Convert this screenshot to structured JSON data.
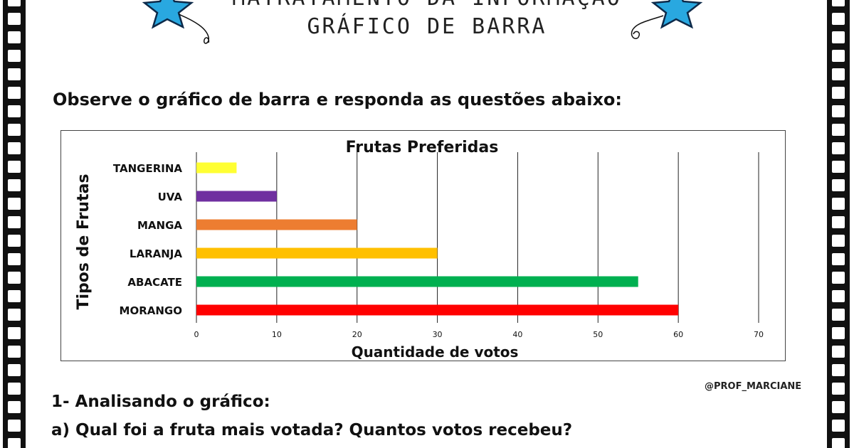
{
  "header": {
    "title_top": "MATRATAMENTO DA INFORMAÇÃO",
    "title_sub": "GRÁFICO DE BARRA"
  },
  "instruction": "Observe o gráfico de barra e responda as questões abaixo:",
  "credit": "@PROF_MARCIANE",
  "questions": {
    "q1": "1- Analisando o gráfico:",
    "q1a": "a) Qual foi a fruta mais votada? Quantos votos recebeu?"
  },
  "decor": {
    "left_icon": "star-balloon-icon",
    "right_icon": "star-balloon-icon",
    "star_color": "#29a8e0",
    "border_icon": "film-strip-icon"
  },
  "chart_data": {
    "type": "bar",
    "orientation": "horizontal",
    "title": "Frutas Preferidas",
    "xlabel": "Quantidade de votos",
    "ylabel": "Tipos de Frutas",
    "categories": [
      "TANGERINA",
      "UVA",
      "MANGA",
      "LARANJA",
      "ABACATE",
      "MORANGO"
    ],
    "values": [
      5,
      10,
      20,
      30,
      55,
      60
    ],
    "colors": [
      "#ffff33",
      "#7030a0",
      "#ed7d31",
      "#ffc000",
      "#00b050",
      "#ff0000"
    ],
    "xlim": [
      0,
      70
    ],
    "xticks": [
      0,
      10,
      20,
      30,
      40,
      50,
      60,
      70
    ],
    "grid": "vertical",
    "legend": "none"
  }
}
